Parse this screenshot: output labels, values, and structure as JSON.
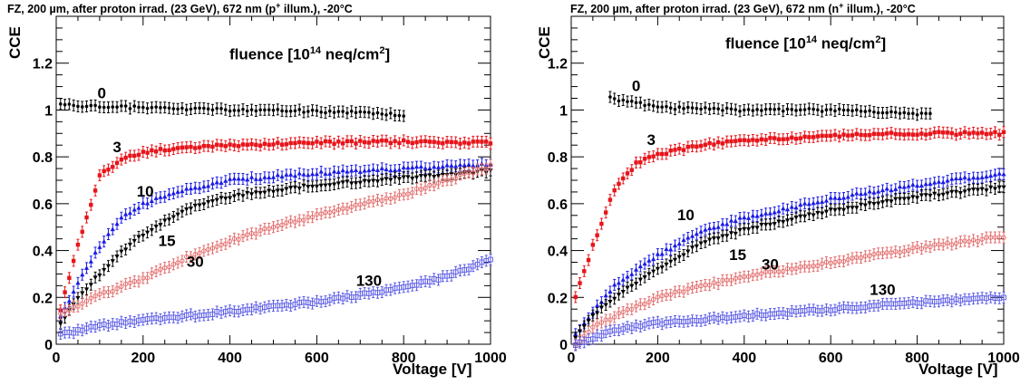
{
  "colors": {
    "black": "#000000",
    "red": "#e8141a",
    "blue": "#1a1ae6",
    "light_red": "#e36a6a",
    "light_blue": "#5a5ae6"
  },
  "legend": {
    "title_pre": "fluence [10",
    "title_exp": "14",
    "title_post": " neq/cm",
    "title_exp2": "2",
    "title_close": "]"
  },
  "chart_data": [
    {
      "type": "scatter",
      "title": "FZ, 200 µm, after proton irrad. (23 GeV), 672 nm (p+ illum.), -20°C",
      "title_pre": "FZ, 200 µm, after proton irrad. (23 GeV), 672 nm (",
      "title_sym": "p",
      "title_sup": "+",
      "title_post": " illum.), -20°C",
      "xlabel": "Voltage [V]",
      "ylabel": "CCE",
      "xlim": [
        0,
        1000
      ],
      "ylim": [
        0,
        1.4
      ],
      "xticks": [
        "0",
        "200",
        "400",
        "600",
        "800",
        "1000"
      ],
      "yticks": [
        "0",
        "0.2",
        "0.4",
        "0.6",
        "0.8",
        "1",
        "1.2"
      ],
      "series": [
        {
          "name": "0",
          "label_x": 105,
          "label_y": 1.05,
          "color": "#000000",
          "marker": "circle-filled",
          "x_start": 10,
          "x_end": 800,
          "points": [
            [
              10,
              1.02
            ],
            [
              200,
              1.01
            ],
            [
              400,
              1.0
            ],
            [
              600,
              0.995
            ],
            [
              800,
              0.98
            ]
          ]
        },
        {
          "name": "3",
          "label_x": 140,
          "label_y": 0.82,
          "color": "#e8141a",
          "marker": "square-filled",
          "x_start": 10,
          "x_end": 1000,
          "points": [
            [
              10,
              0.15
            ],
            [
              50,
              0.42
            ],
            [
              100,
              0.72
            ],
            [
              150,
              0.79
            ],
            [
              200,
              0.82
            ],
            [
              300,
              0.84
            ],
            [
              400,
              0.85
            ],
            [
              600,
              0.86
            ],
            [
              800,
              0.865
            ],
            [
              1000,
              0.86
            ]
          ]
        },
        {
          "name": "10",
          "label_x": 205,
          "label_y": 0.63,
          "color": "#1a1ae6",
          "marker": "triangle-filled",
          "x_start": 10,
          "x_end": 1000,
          "points": [
            [
              10,
              0.12
            ],
            [
              50,
              0.26
            ],
            [
              100,
              0.42
            ],
            [
              150,
              0.54
            ],
            [
              200,
              0.6
            ],
            [
              300,
              0.66
            ],
            [
              400,
              0.7
            ],
            [
              600,
              0.73
            ],
            [
              800,
              0.75
            ],
            [
              1000,
              0.77
            ]
          ]
        },
        {
          "name": "15",
          "label_x": 255,
          "label_y": 0.42,
          "color": "#000000",
          "marker": "triangle-down-filled",
          "x_start": 10,
          "x_end": 1000,
          "points": [
            [
              10,
              0.09
            ],
            [
              50,
              0.2
            ],
            [
              100,
              0.3
            ],
            [
              150,
              0.39
            ],
            [
              200,
              0.47
            ],
            [
              300,
              0.58
            ],
            [
              400,
              0.63
            ],
            [
              600,
              0.68
            ],
            [
              800,
              0.71
            ],
            [
              1000,
              0.74
            ]
          ]
        },
        {
          "name": "30",
          "label_x": 320,
          "label_y": 0.33,
          "color": "#e36a6a",
          "marker": "circle-open",
          "x_start": 10,
          "x_end": 1000,
          "points": [
            [
              10,
              0.13
            ],
            [
              100,
              0.21
            ],
            [
              200,
              0.28
            ],
            [
              300,
              0.37
            ],
            [
              400,
              0.44
            ],
            [
              500,
              0.5
            ],
            [
              600,
              0.55
            ],
            [
              800,
              0.64
            ],
            [
              1000,
              0.76
            ]
          ]
        },
        {
          "name": "130",
          "label_x": 720,
          "label_y": 0.25,
          "color": "#5a5ae6",
          "marker": "square-open",
          "x_start": 10,
          "x_end": 1000,
          "points": [
            [
              10,
              0.04
            ],
            [
              100,
              0.08
            ],
            [
              200,
              0.1
            ],
            [
              400,
              0.14
            ],
            [
              600,
              0.18
            ],
            [
              800,
              0.24
            ],
            [
              900,
              0.29
            ],
            [
              1000,
              0.36
            ]
          ]
        }
      ]
    },
    {
      "type": "scatter",
      "title": "FZ, 200 µm, after proton irrad. (23 GeV), 672 nm (n+ illum.), -20°C",
      "title_pre": "FZ, 200 µm, after proton irrad. (23 GeV), 672 nm (",
      "title_sym": "n",
      "title_sup": "+",
      "title_post": " illum.), -20°C",
      "xlabel": "Voltage [V]",
      "ylabel": "CCE",
      "xlim": [
        0,
        1000
      ],
      "ylim": [
        0,
        1.4
      ],
      "xticks": [
        "0",
        "200",
        "400",
        "600",
        "800",
        "1000"
      ],
      "yticks": [
        "0",
        "0.2",
        "0.4",
        "0.6",
        "0.8",
        "1",
        "1.2"
      ],
      "series": [
        {
          "name": "0",
          "label_x": 150,
          "label_y": 1.08,
          "color": "#000000",
          "marker": "circle-filled",
          "x_start": 90,
          "x_end": 830,
          "points": [
            [
              90,
              1.05
            ],
            [
              150,
              1.03
            ],
            [
              200,
              1.01
            ],
            [
              400,
              1.0
            ],
            [
              600,
              1.0
            ],
            [
              830,
              0.98
            ]
          ]
        },
        {
          "name": "3",
          "label_x": 185,
          "label_y": 0.85,
          "color": "#e8141a",
          "marker": "square-filled",
          "x_start": 10,
          "x_end": 1000,
          "points": [
            [
              10,
              0.2
            ],
            [
              50,
              0.42
            ],
            [
              100,
              0.66
            ],
            [
              150,
              0.77
            ],
            [
              200,
              0.81
            ],
            [
              300,
              0.85
            ],
            [
              400,
              0.87
            ],
            [
              600,
              0.89
            ],
            [
              800,
              0.9
            ],
            [
              1000,
              0.9
            ]
          ]
        },
        {
          "name": "10",
          "label_x": 265,
          "label_y": 0.53,
          "color": "#1a1ae6",
          "marker": "triangle-filled",
          "x_start": 10,
          "x_end": 1000,
          "points": [
            [
              10,
              0.04
            ],
            [
              50,
              0.14
            ],
            [
              100,
              0.25
            ],
            [
              200,
              0.38
            ],
            [
              300,
              0.48
            ],
            [
              400,
              0.54
            ],
            [
              600,
              0.62
            ],
            [
              800,
              0.68
            ],
            [
              1000,
              0.73
            ]
          ]
        },
        {
          "name": "15",
          "label_x": 385,
          "label_y": 0.36,
          "color": "#000000",
          "marker": "triangle-down-filled",
          "x_start": 10,
          "x_end": 1000,
          "points": [
            [
              10,
              0.03
            ],
            [
              50,
              0.12
            ],
            [
              100,
              0.2
            ],
            [
              200,
              0.32
            ],
            [
              300,
              0.43
            ],
            [
              400,
              0.49
            ],
            [
              600,
              0.57
            ],
            [
              800,
              0.63
            ],
            [
              1000,
              0.67
            ]
          ]
        },
        {
          "name": "30",
          "label_x": 460,
          "label_y": 0.32,
          "color": "#e36a6a",
          "marker": "circle-open",
          "x_start": 10,
          "x_end": 1000,
          "points": [
            [
              10,
              0.0
            ],
            [
              50,
              0.07
            ],
            [
              100,
              0.12
            ],
            [
              200,
              0.2
            ],
            [
              400,
              0.29
            ],
            [
              600,
              0.35
            ],
            [
              800,
              0.41
            ],
            [
              1000,
              0.46
            ]
          ]
        },
        {
          "name": "130",
          "label_x": 720,
          "label_y": 0.21,
          "color": "#5a5ae6",
          "marker": "square-open",
          "x_start": 10,
          "x_end": 1000,
          "points": [
            [
              10,
              0.0
            ],
            [
              100,
              0.06
            ],
            [
              200,
              0.09
            ],
            [
              400,
              0.12
            ],
            [
              600,
              0.15
            ],
            [
              800,
              0.18
            ],
            [
              1000,
              0.2
            ]
          ]
        }
      ]
    }
  ]
}
